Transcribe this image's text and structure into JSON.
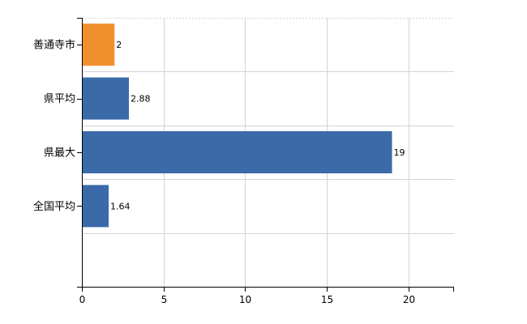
{
  "chart_data": {
    "type": "bar",
    "orientation": "horizontal",
    "categories": [
      "善通寺市",
      "県平均",
      "県最大",
      "全国平均"
    ],
    "values": [
      2,
      2.88,
      19,
      1.64
    ],
    "data_labels": [
      "2",
      "2.88",
      "19",
      "1.64"
    ],
    "colors": [
      "#f0902f",
      "#3a6aa8",
      "#3a6aa8",
      "#3a6aa8"
    ],
    "xlim": [
      0,
      22.8
    ],
    "xticks": [
      0,
      5,
      10,
      15,
      20
    ],
    "xtick_labels": [
      "0",
      "5",
      "10",
      "15",
      "20"
    ],
    "grid": true,
    "legend": "none"
  }
}
